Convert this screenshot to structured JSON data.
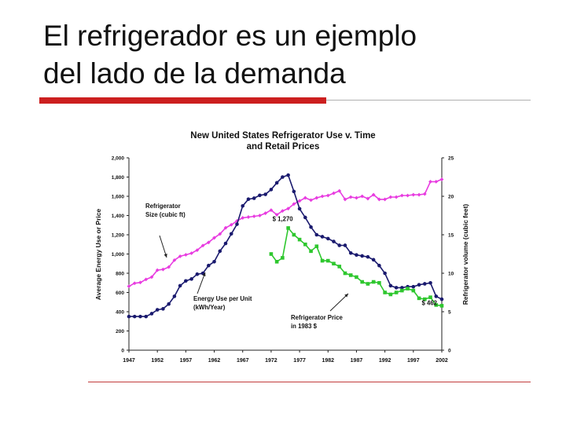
{
  "slide": {
    "title_line1": "El refrigerador es un ejemplo",
    "title_line2": "del lado de la demanda",
    "accent_color": "#cc1f1f"
  },
  "chart_data": {
    "type": "line",
    "title_line1": "New United States Refrigerator Use v. Time",
    "title_line2": "and Retail Prices",
    "ylabel_left": "Average Energy Use or Price",
    "ylabel_right": "Refrigerator volume (cubic feet)",
    "ylim_left": [
      0,
      2000
    ],
    "ylim_right": [
      0,
      25
    ],
    "xlim": [
      1947,
      2002
    ],
    "x_ticks": [
      "1947",
      "1952",
      "1957",
      "1962",
      "1967",
      "1972",
      "1977",
      "1982",
      "1987",
      "1992",
      "1997",
      "2002"
    ],
    "y_ticks_left": [
      "0",
      "200",
      "400",
      "600",
      "800",
      "1,000",
      "1,200",
      "1,400",
      "1,600",
      "1,800",
      "2,000"
    ],
    "y_ticks_right": [
      "0",
      "5",
      "10",
      "15",
      "20",
      "25"
    ],
    "grid": false,
    "series": [
      {
        "name": "Refrigerator Size (cubic ft)",
        "label_line1": "Refrigerator",
        "label_line2": "Size (cubic ft)",
        "color": "#e83ce0",
        "marker": "diamond",
        "axis": "right",
        "x": [
          1947,
          1948,
          1949,
          1950,
          1951,
          1952,
          1953,
          1954,
          1955,
          1956,
          1957,
          1958,
          1959,
          1960,
          1961,
          1962,
          1963,
          1964,
          1965,
          1966,
          1967,
          1968,
          1969,
          1970,
          1971,
          1972,
          1973,
          1974,
          1975,
          1976,
          1977,
          1978,
          1979,
          1980,
          1981,
          1982,
          1983,
          1984,
          1985,
          1986,
          1987,
          1988,
          1989,
          1990,
          1991,
          1992,
          1993,
          1994,
          1995,
          1996,
          1997,
          1998,
          1999,
          2000,
          2001,
          2002
        ],
        "y": [
          8.3,
          8.7,
          8.8,
          9.2,
          9.5,
          10.4,
          10.5,
          10.8,
          11.7,
          12.2,
          12.4,
          12.6,
          13.0,
          13.6,
          14.0,
          14.6,
          15.1,
          15.9,
          16.3,
          16.8,
          17.2,
          17.3,
          17.4,
          17.5,
          17.8,
          18.2,
          17.6,
          18.1,
          18.4,
          19.0,
          19.4,
          19.8,
          19.5,
          19.8,
          20.0,
          20.1,
          20.4,
          20.7,
          19.6,
          19.9,
          19.8,
          20.0,
          19.7,
          20.2,
          19.6,
          19.6,
          19.9,
          19.9,
          20.1,
          20.1,
          20.2,
          20.2,
          20.3,
          21.9,
          21.9,
          22.2
        ]
      },
      {
        "name": "Energy Use per Unit (kWh/Year)",
        "label_line1": "Energy Use per Unit",
        "label_line2": "(kWh/Year)",
        "color": "#1a1a6e",
        "marker": "circle",
        "axis": "left",
        "x": [
          1947,
          1948,
          1949,
          1950,
          1951,
          1952,
          1953,
          1954,
          1955,
          1956,
          1957,
          1958,
          1959,
          1960,
          1961,
          1962,
          1963,
          1964,
          1965,
          1966,
          1967,
          1968,
          1969,
          1970,
          1971,
          1972,
          1973,
          1974,
          1975,
          1976,
          1977,
          1978,
          1979,
          1980,
          1981,
          1982,
          1983,
          1984,
          1985,
          1986,
          1987,
          1988,
          1989,
          1990,
          1991,
          1992,
          1993,
          1994,
          1995,
          1996,
          1997,
          1998,
          1999,
          2000,
          2001,
          2002
        ],
        "y": [
          350,
          350,
          350,
          350,
          380,
          420,
          430,
          480,
          560,
          670,
          720,
          740,
          790,
          800,
          880,
          920,
          1030,
          1110,
          1210,
          1310,
          1500,
          1570,
          1580,
          1610,
          1620,
          1670,
          1740,
          1800,
          1820,
          1650,
          1470,
          1380,
          1280,
          1200,
          1180,
          1160,
          1130,
          1090,
          1090,
          1010,
          990,
          980,
          970,
          940,
          880,
          800,
          670,
          650,
          650,
          660,
          660,
          680,
          690,
          700,
          560,
          530
        ]
      },
      {
        "name": "Refrigerator Price in 1983 $",
        "label_line1": "Refrigerator Price",
        "label_line2": "in 1983 $",
        "color": "#2ec72e",
        "marker": "square",
        "axis": "left",
        "x": [
          1972,
          1973,
          1974,
          1975,
          1976,
          1977,
          1978,
          1979,
          1980,
          1981,
          1982,
          1983,
          1984,
          1985,
          1986,
          1987,
          1988,
          1989,
          1990,
          1991,
          1992,
          1993,
          1994,
          1995,
          1996,
          1997,
          1998,
          1999,
          2000,
          2001,
          2002
        ],
        "y": [
          1000,
          920,
          960,
          1270,
          1200,
          1150,
          1100,
          1030,
          1080,
          930,
          930,
          900,
          870,
          800,
          780,
          760,
          710,
          690,
          710,
          700,
          600,
          580,
          600,
          620,
          640,
          620,
          540,
          530,
          550,
          470,
          462
        ]
      }
    ],
    "annotations": [
      {
        "text": "$ 1,270",
        "x": 1975,
        "y": 1270
      },
      {
        "text": "$ 462",
        "x": 2002,
        "y": 462
      }
    ]
  }
}
